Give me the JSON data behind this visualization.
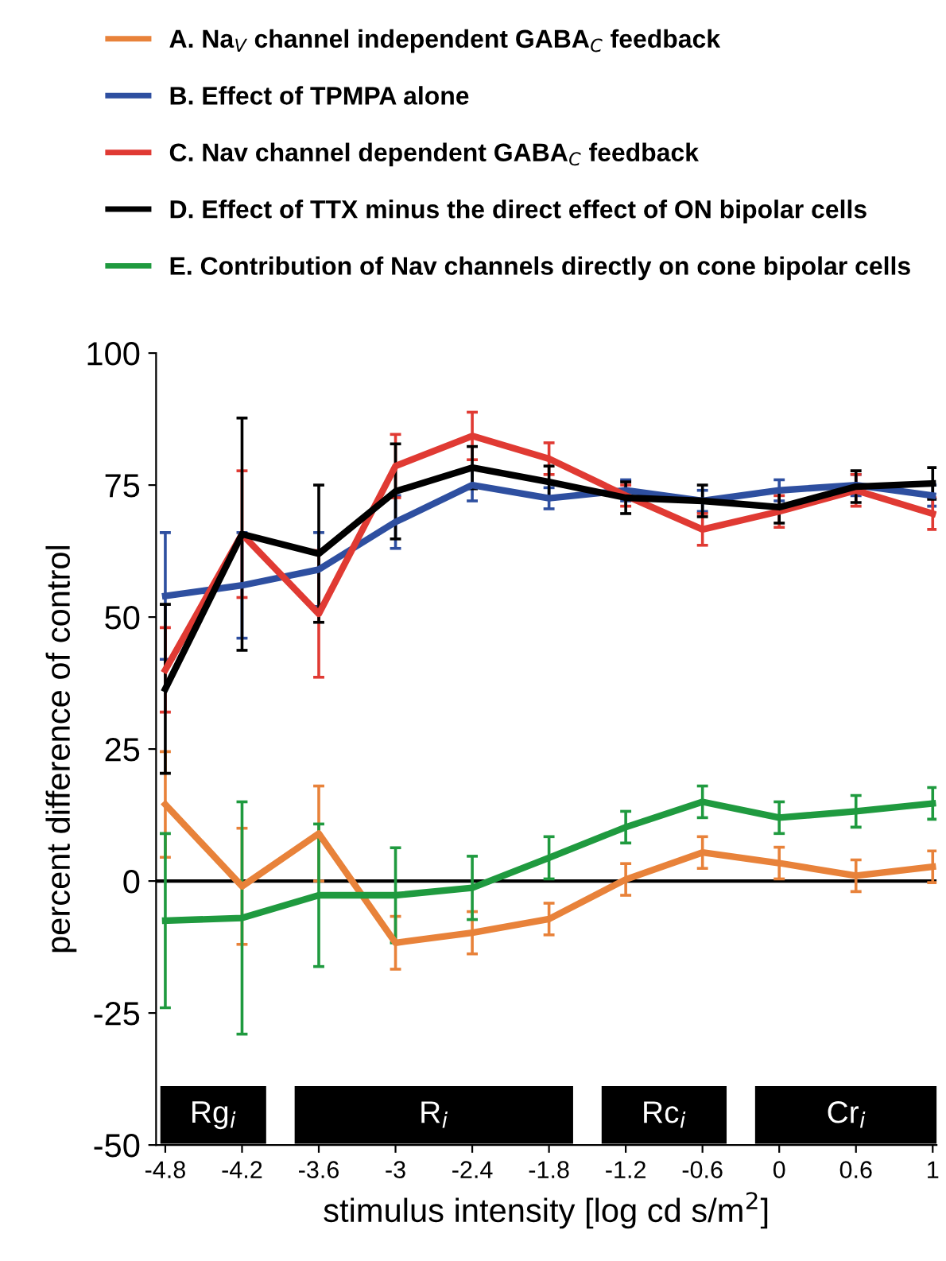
{
  "chart_data": {
    "type": "line",
    "xlabel": "stimulus intensity [log cd s/m$^{2}$]",
    "ylabel": "percent difference of control",
    "categories": [
      "-4.8",
      "-4.2",
      "-3.6",
      "-3",
      "-2.4",
      "-1.8",
      "-1.2",
      "-0.6",
      "0",
      "0.6",
      "1"
    ],
    "series": [
      {
        "name": "A. Na$_{V}$ channel independent GABA$_{C}$ feedback",
        "color": "#e8823a",
        "values": [
          14.5,
          -1,
          9,
          -11.7,
          -9.8,
          -7.2,
          0.3,
          5.4,
          3.4,
          1,
          2.7
        ],
        "errors": [
          10,
          11,
          9,
          5,
          4,
          3,
          3,
          3,
          3,
          3,
          3
        ]
      },
      {
        "name": "B. Effect of TPMPA alone",
        "color": "#2e4fa0",
        "values": [
          54,
          56,
          59,
          68,
          75,
          72.5,
          74,
          72,
          74,
          75,
          73
        ],
        "errors": [
          12,
          10,
          7,
          5,
          3,
          2,
          2,
          2,
          2,
          2,
          2
        ]
      },
      {
        "name": "C. Nav channel dependent GABA$_{C}$ feedback",
        "color": "#e03a33",
        "values": [
          40,
          65.7,
          50.6,
          78.6,
          84.3,
          80,
          73,
          66.6,
          70,
          74,
          69.6
        ],
        "errors": [
          8,
          12,
          12,
          6,
          4.5,
          3,
          2,
          3,
          3,
          3,
          3
        ]
      },
      {
        "name": "D. Effect of TTX minus the direct effect of ON bipolar cells",
        "color": "#000000",
        "values": [
          36.4,
          65.7,
          62,
          73.8,
          78.3,
          75.6,
          72.6,
          72,
          70.8,
          74.7,
          75.3
        ],
        "errors": [
          16,
          22,
          13,
          9,
          4,
          3,
          3,
          3,
          3,
          3,
          3
        ]
      },
      {
        "name": "E. Contribution of Nav channels directly on cone bipolar cells",
        "color": "#1f9a3f",
        "values": [
          -7.5,
          -7,
          -2.7,
          -2.7,
          -1.3,
          4.4,
          10.2,
          15,
          12,
          13.2,
          14.7
        ],
        "errors": [
          16.5,
          22,
          13.5,
          9,
          6,
          4,
          3,
          3,
          3,
          3,
          3
        ]
      }
    ],
    "ylim": [
      -50,
      100
    ],
    "yticks": [
      100,
      75,
      50,
      25,
      0,
      -25,
      -50
    ],
    "ref_lines": [
      {
        "axis": "y",
        "value": 0,
        "color": "#000000"
      }
    ],
    "bands": [
      {
        "axis": "x",
        "from": "-4.8",
        "to": "-4.2",
        "label": "Rg$_{i}$",
        "color": "#000000"
      },
      {
        "axis": "x",
        "from": "-3.6",
        "to": "-1.8",
        "label": "R$_{i}$",
        "color": "#000000"
      },
      {
        "axis": "x",
        "from": "-1.2",
        "to": "-0.6",
        "label": "Rc$_{i}$",
        "color": "#000000"
      },
      {
        "axis": "x",
        "from": "0",
        "to": "1",
        "label": "Cr$_{i}$",
        "color": "#000000"
      }
    ],
    "grid": false,
    "legend": "top",
    "marker": "none",
    "line_style": "solid"
  }
}
